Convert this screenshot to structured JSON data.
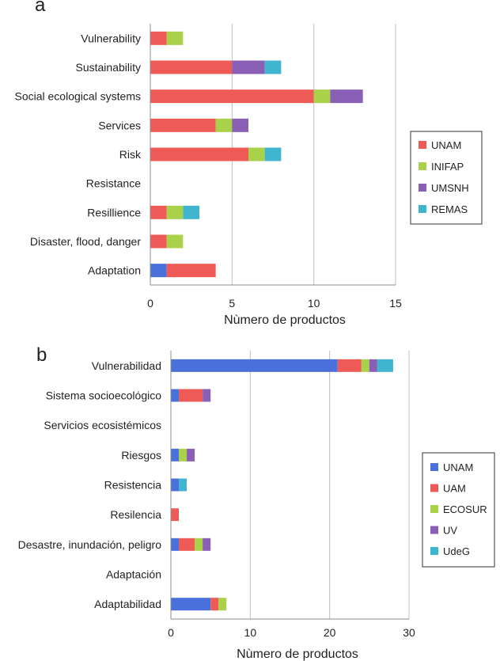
{
  "colors": {
    "UNAM_red": "#ee5b57",
    "UNAM_blue": "#4a70dc",
    "green": "#a9d14a",
    "purple": "#8a5fb6",
    "teal": "#3fb5cf",
    "grid": "#bfbfbf",
    "axis": "#8c8c8c"
  },
  "chart_data": [
    {
      "panel_label": "a",
      "type": "bar",
      "orientation": "horizontal",
      "stacked": true,
      "xlabel": "Nùmero de productos",
      "xlim": [
        0,
        15
      ],
      "xticks": [
        0,
        5,
        10,
        15
      ],
      "grid": true,
      "legend_position": "right",
      "categories": [
        "Vulnerability",
        "Sustainability",
        "Social ecological systems",
        "Services",
        "Risk",
        "Resistance",
        "Resillience",
        "Disaster, flood, danger",
        "Adaptation"
      ],
      "series": [
        {
          "name": "UNAM",
          "color": "#ee5b57",
          "values": [
            1,
            5,
            10,
            4,
            6,
            0,
            1,
            1,
            3
          ]
        },
        {
          "name": "INIFAP",
          "color": "#a9d14a",
          "values": [
            1,
            0,
            1,
            1,
            1,
            0,
            1,
            1,
            0
          ]
        },
        {
          "name": "UMSNH",
          "color": "#8a5fb6",
          "values": [
            0,
            2,
            2,
            1,
            0,
            0,
            0,
            0,
            0
          ]
        },
        {
          "name": "REMAS",
          "color": "#3fb5cf",
          "values": [
            0,
            1,
            0,
            0,
            1,
            0,
            1,
            0,
            0
          ]
        }
      ],
      "extra_series": [
        {
          "name": "",
          "color": "#4a70dc",
          "values": [
            0,
            0,
            0,
            0,
            0,
            0,
            0,
            0,
            1
          ]
        }
      ]
    },
    {
      "panel_label": "b",
      "type": "bar",
      "orientation": "horizontal",
      "stacked": true,
      "xlabel": "Nùmero de productos",
      "xlim": [
        0,
        30
      ],
      "xticks": [
        0,
        10,
        20,
        30
      ],
      "grid": true,
      "legend_position": "right",
      "categories": [
        "Vulnerabilidad",
        "Sistema socioecológico",
        "Servicios ecosistémicos",
        "Riesgos",
        "Resistencia",
        "Resilencia",
        "Desastre, inundación, peligro",
        "Adaptación",
        "Adaptabilidad"
      ],
      "series": [
        {
          "name": "UNAM",
          "color": "#4a70dc",
          "values": [
            21,
            1,
            0,
            1,
            1,
            0,
            1,
            0,
            5
          ]
        },
        {
          "name": "UAM",
          "color": "#ee5b57",
          "values": [
            3,
            3,
            0,
            0,
            0,
            1,
            2,
            0,
            1
          ]
        },
        {
          "name": "ECOSUR",
          "color": "#a9d14a",
          "values": [
            1,
            0,
            0,
            1,
            0,
            0,
            1,
            0,
            1
          ]
        },
        {
          "name": "UV",
          "color": "#8a5fb6",
          "values": [
            1,
            1,
            0,
            1,
            0,
            0,
            1,
            0,
            0
          ]
        },
        {
          "name": "UdeG",
          "color": "#3fb5cf",
          "values": [
            2,
            0,
            0,
            0,
            1,
            0,
            0,
            0,
            0
          ]
        }
      ]
    }
  ]
}
